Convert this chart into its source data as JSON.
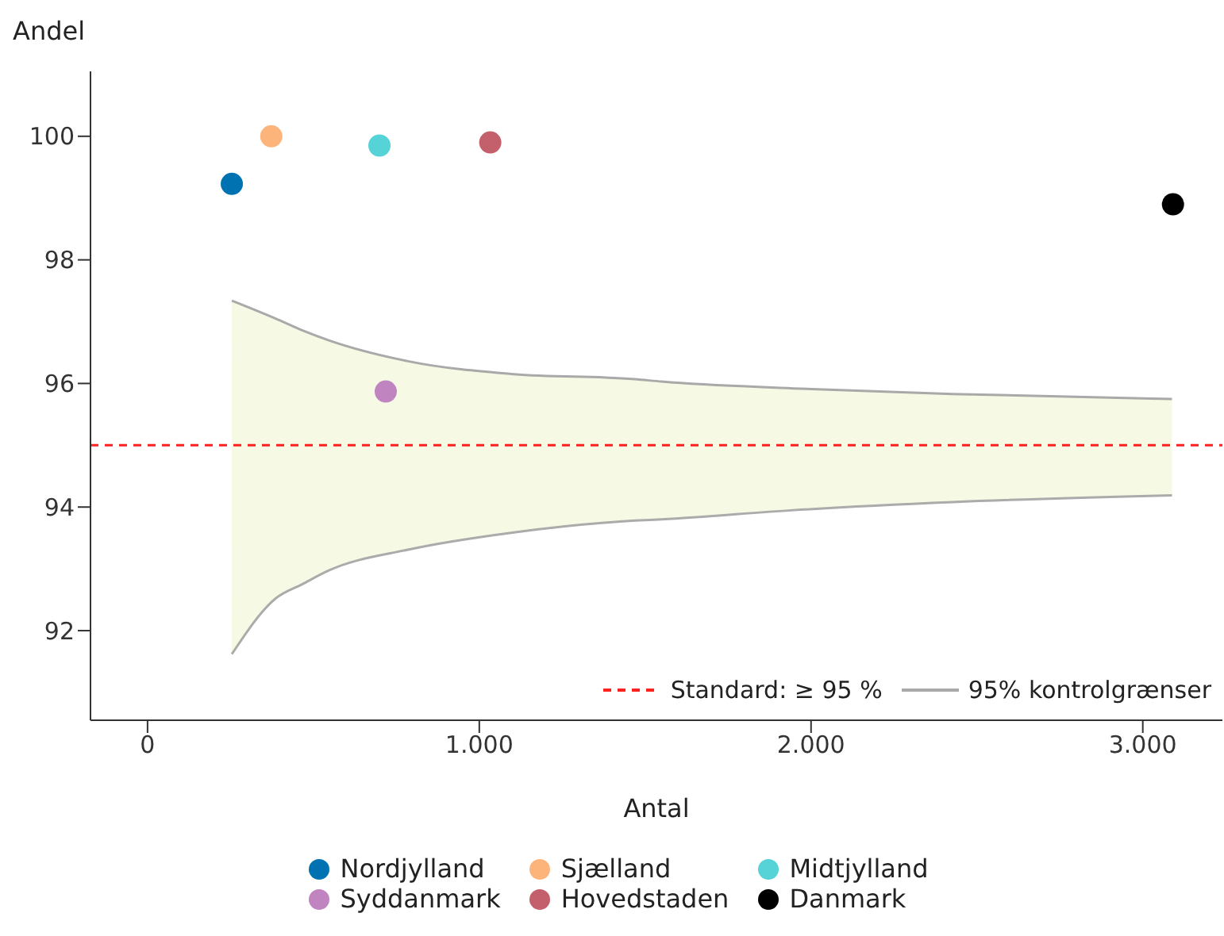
{
  "chart_data": {
    "type": "scatter",
    "xlabel": "Antal",
    "ylabel": "Andel",
    "xlim": [
      -172,
      3240
    ],
    "ylim": [
      90.55,
      101.05
    ],
    "xticks": [
      0,
      {
        "value": 1000,
        "label": "1.000"
      },
      {
        "value": 2000,
        "label": "2.000"
      },
      {
        "value": 3000,
        "label": "3.000"
      }
    ],
    "yticks": [
      92,
      94,
      96,
      98,
      100
    ],
    "grid": false,
    "legend": "bottom",
    "marker": "circle",
    "ref_lines": [
      {
        "axis": "y",
        "value": 95,
        "label": "Standard: ≥ 95 %",
        "color": "#ff2020",
        "line_style": "dashed"
      }
    ],
    "series": [
      {
        "type": "line",
        "marker": "none",
        "name": "95% kontrolgrænser",
        "color": "#a9a9a9",
        "x": [
          254,
          386,
          466,
          545,
          785,
          1104,
          1469,
          1550,
          1947,
          2426,
          3088
        ],
        "values": [
          97.34,
          97.05,
          96.86,
          96.7,
          96.36,
          96.15,
          96.07,
          96.03,
          95.92,
          95.83,
          95.75
        ],
        "lower": [
          91.62,
          92.52,
          92.75,
          92.97,
          93.31,
          93.59,
          93.78,
          93.8,
          93.95,
          94.08,
          94.19
        ],
        "upper": [
          97.34,
          97.05,
          96.86,
          96.7,
          96.36,
          96.15,
          96.07,
          96.03,
          95.92,
          95.83,
          95.75
        ]
      },
      {
        "type": "line",
        "marker": "none",
        "color": "#ababab",
        "x": [
          254,
          386,
          466,
          545,
          785,
          1104,
          1469,
          1550,
          1947,
          2426,
          3088
        ],
        "values": [
          91.62,
          92.52,
          92.75,
          92.97,
          93.31,
          93.59,
          93.78,
          93.8,
          93.95,
          94.08,
          94.19
        ]
      },
      {
        "name": "Nordjylland",
        "color": "#0072b2",
        "x": [
          254
        ],
        "values": [
          99.23
        ]
      },
      {
        "name": "Sjælland",
        "color": "#fdb47a",
        "x": [
          373
        ],
        "values": [
          100
        ]
      },
      {
        "name": "Midtjylland",
        "color": "#56d3d6",
        "x": [
          699
        ],
        "values": [
          99.85
        ]
      },
      {
        "name": "Syddanmark",
        "color": "#c084c0",
        "x": [
          718
        ],
        "values": [
          95.87
        ]
      },
      {
        "name": "Hovedstaden",
        "color": "#c4606c",
        "x": [
          1033
        ],
        "values": [
          99.9
        ]
      },
      {
        "name": "Danmark",
        "color": "#000000",
        "x": [
          3091
        ],
        "values": [
          98.9
        ]
      }
    ]
  }
}
